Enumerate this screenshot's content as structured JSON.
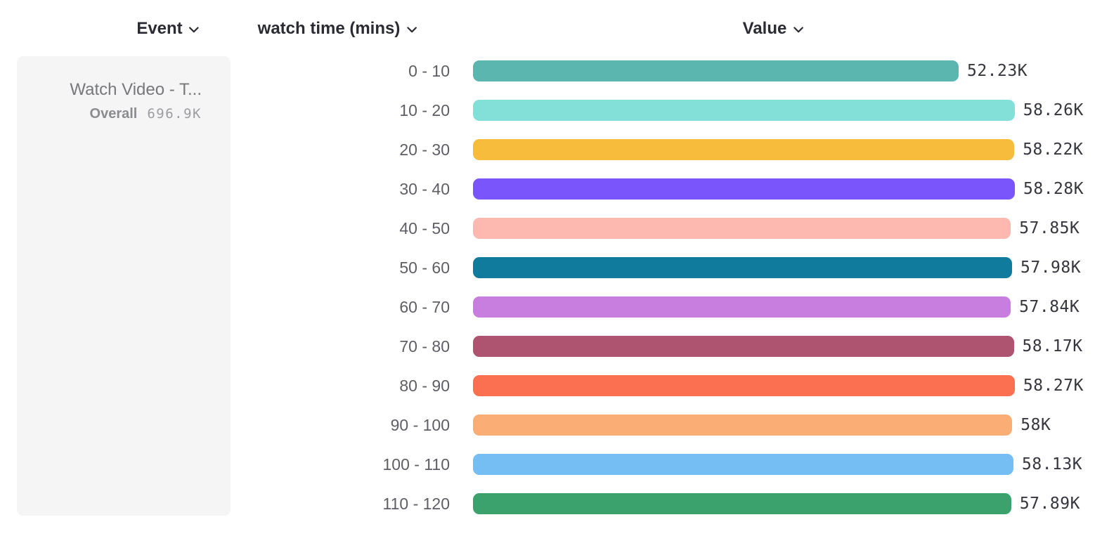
{
  "header": {
    "event": {
      "label": "Event"
    },
    "series": {
      "label": "watch time (mins)"
    },
    "value": {
      "label": "Value"
    }
  },
  "event_panel": {
    "event_name": "Watch Video - T...",
    "overall_label": "Overall",
    "overall_value": "696.9K"
  },
  "icons": {
    "chevron_color": "#2b2c33"
  },
  "chart_data": {
    "type": "bar",
    "orientation": "horizontal",
    "title": "",
    "xlabel": "Value",
    "ylabel": "watch time (mins)",
    "grid": false,
    "legend": "none",
    "xlim": [
      0,
      58280
    ],
    "categories": [
      "0 - 10",
      "10 - 20",
      "20 - 30",
      "30 - 40",
      "40 - 50",
      "50 - 60",
      "60 - 70",
      "70 - 80",
      "80 - 90",
      "90 - 100",
      "100 - 110",
      "110 - 120"
    ],
    "values": [
      52230,
      58260,
      58220,
      58280,
      57850,
      57980,
      57840,
      58170,
      58270,
      58000,
      58130,
      57890
    ],
    "value_labels": [
      "52.23K",
      "58.26K",
      "58.22K",
      "58.28K",
      "57.85K",
      "57.98K",
      "57.84K",
      "58.17K",
      "58.27K",
      "58K",
      "58.13K",
      "57.89K"
    ],
    "bar_colors": [
      "#5ab6af",
      "#82e0d8",
      "#f7bc3c",
      "#7a55fb",
      "#fdb9b0",
      "#117b9d",
      "#c87edf",
      "#af5470",
      "#fc7052",
      "#fbad76",
      "#74bef4",
      "#3ca26d"
    ]
  }
}
